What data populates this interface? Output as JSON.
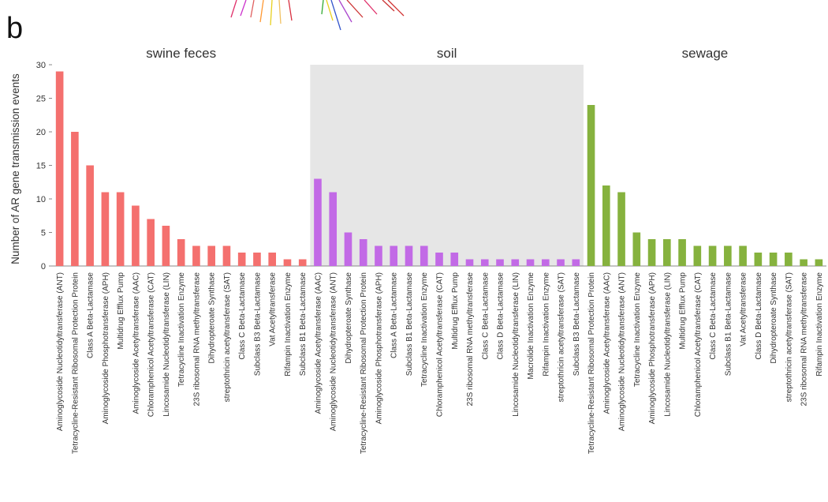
{
  "figure_letter": "b",
  "colors": {
    "swine_feces": "#f4706e",
    "soil": "#c26ae6",
    "sewage": "#86b23e",
    "soil_band": "#e6e6e6"
  },
  "chart_data": {
    "type": "bar",
    "ylabel": "Number of AR gene transmission events",
    "ylim": [
      0,
      30
    ],
    "yticks": [
      0,
      5,
      10,
      15,
      20,
      25,
      30
    ],
    "grid": false,
    "panels": [
      {
        "name": "swine feces",
        "color": "#f4706e",
        "shaded": false,
        "categories": [
          "Aminoglycoside Nucleotidyltransferase (ANT)",
          "Tetracycline-Resistant Ribosomal Protection Protein",
          "Class A Beta-Lactamase",
          "Aminoglycoside Phosphotransferase (APH)",
          "Multidrug Efflux Pump",
          "Aminoglycoside Acetyltransferase (AAC)",
          "Chloramphenicol Acetyltransferase (CAT)",
          "Lincosamide Nucleotidyltransferase (LIN)",
          "Tetracycline Inactivation Enzyme",
          "23S ribosomal RNA methyltransferase",
          "Dihydropteroate Synthase",
          "streptothricin acetyltransferase (SAT)",
          "Class C Beta-Lactamase",
          "Subclass B3 Beta-Lactamase",
          "Vat Acetyltransferase",
          "Rifampin Inactivation Enzyme",
          "Subclass B1 Beta-Lactamase"
        ],
        "values": [
          29,
          20,
          15,
          11,
          11,
          9,
          7,
          6,
          4,
          3,
          3,
          3,
          2,
          2,
          2,
          1,
          1
        ]
      },
      {
        "name": "soil",
        "color": "#c26ae6",
        "shaded": true,
        "categories": [
          "Aminoglycoside Acetyltransferase (AAC)",
          "Aminoglycoside Nucleotidyltransferase (ANT)",
          "Dihydropteroate Synthase",
          "Tetracycline-Resistant Ribosomal Protection Protein",
          "Aminoglycoside Phosphotransferase (APH)",
          "Class A Beta-Lactamase",
          "Subclass B1 Beta-Lactamase",
          "Tetracycline Inactivation Enzyme",
          "Chloramphenicol Acetyltransferase (CAT)",
          "Multidrug Efflux Pump",
          "23S ribosomal RNA methyltransferase",
          "Class C Beta-Lactamase",
          "Class D Beta-Lactamase",
          "Lincosamide Nucleotidyltransferase (LIN)",
          "Macrolide Inactivation Enzyme",
          "Rifampin Inactivation Enzyme",
          "streptothricin acetyltransferase (SAT)",
          "Subclass B3 Beta-Lactamase"
        ],
        "values": [
          13,
          11,
          5,
          4,
          3,
          3,
          3,
          3,
          2,
          2,
          1,
          1,
          1,
          1,
          1,
          1,
          1,
          1
        ]
      },
      {
        "name": "sewage",
        "color": "#86b23e",
        "shaded": false,
        "categories": [
          "Tetracycline-Resistant Ribosomal Protection Protein",
          "Aminoglycoside Acetyltransferase (AAC)",
          "Aminoglycoside Nucleotidyltransferase (ANT)",
          "Tetracycline Inactivation Enzyme",
          "Aminoglycoside Phosphotransferase (APH)",
          "Lincosamide Nucleotidyltransferase (LIN)",
          "Multidrug Efflux Pump",
          "Chloramphenicol Acetyltransferase (CAT)",
          "Class C Beta-Lactamase",
          "Subclass B1 Beta-Lactamase",
          "Vat Acetyltransferase",
          "Class D Beta-Lactamase",
          "Dihydropteroate Synthase",
          "streptothricin acetyltransferase (SAT)",
          "23S ribosomal RNA methyltransferase",
          "Rifampin Inactivation Enzyme"
        ],
        "values": [
          24,
          12,
          11,
          5,
          4,
          4,
          4,
          3,
          3,
          3,
          3,
          2,
          2,
          2,
          1,
          1
        ]
      }
    ]
  }
}
